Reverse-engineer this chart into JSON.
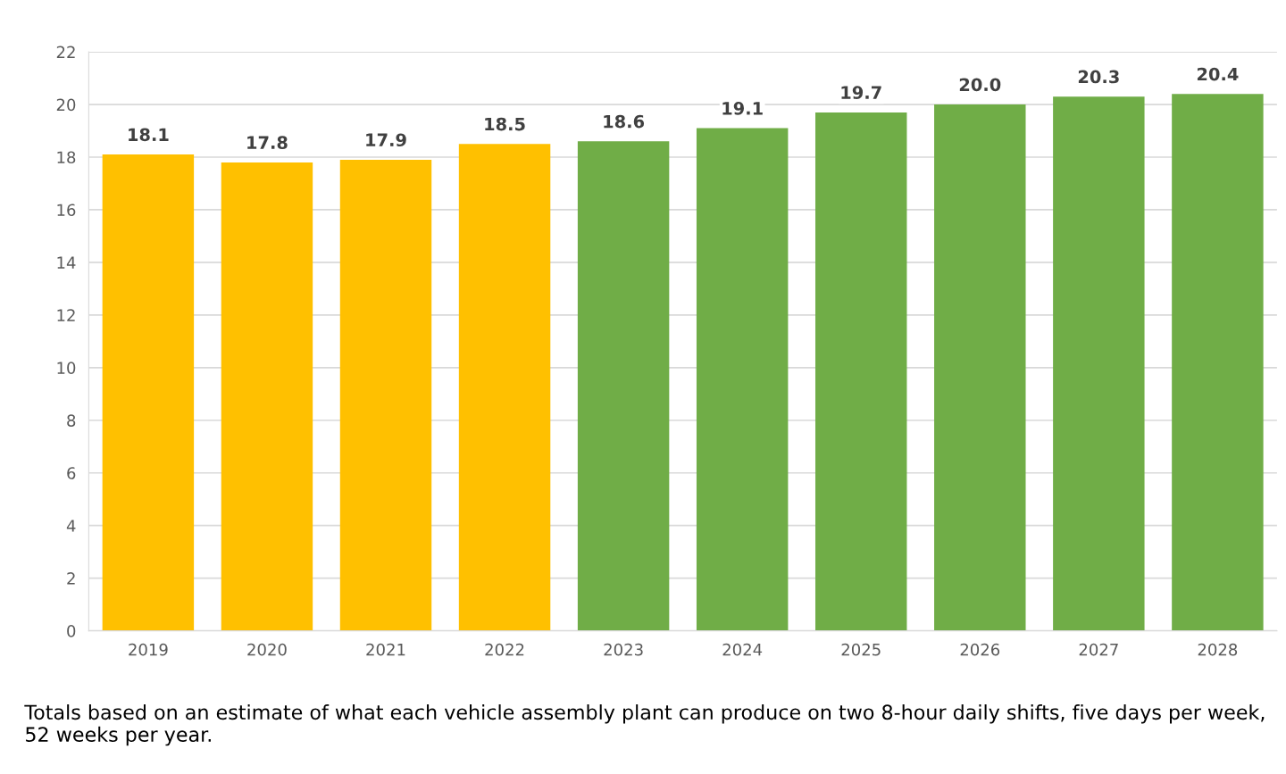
{
  "chart_data": {
    "type": "bar",
    "categories": [
      "2019",
      "2020",
      "2021",
      "2022",
      "2023",
      "2024",
      "2025",
      "2026",
      "2027",
      "2028"
    ],
    "values": [
      18.1,
      17.8,
      17.9,
      18.5,
      18.6,
      19.1,
      19.7,
      20.0,
      20.3,
      20.4
    ],
    "value_labels": [
      "18.1",
      "17.8",
      "17.9",
      "18.5",
      "18.6",
      "19.1",
      "19.7",
      "20.0",
      "20.3",
      "20.4"
    ],
    "colors": [
      "#ffc000",
      "#ffc000",
      "#ffc000",
      "#ffc000",
      "#70ad47",
      "#70ad47",
      "#70ad47",
      "#70ad47",
      "#70ad47",
      "#70ad47"
    ],
    "ylim": [
      0,
      22
    ],
    "yticks": [
      0,
      2,
      4,
      6,
      8,
      10,
      12,
      14,
      16,
      18,
      20,
      22
    ],
    "grid": "y",
    "legend": false,
    "annotations": [
      "Totals based on an estimate of what each vehicle assembly plant can produce on two 8-hour daily shifts, five days per week, 52 weeks per year."
    ]
  }
}
